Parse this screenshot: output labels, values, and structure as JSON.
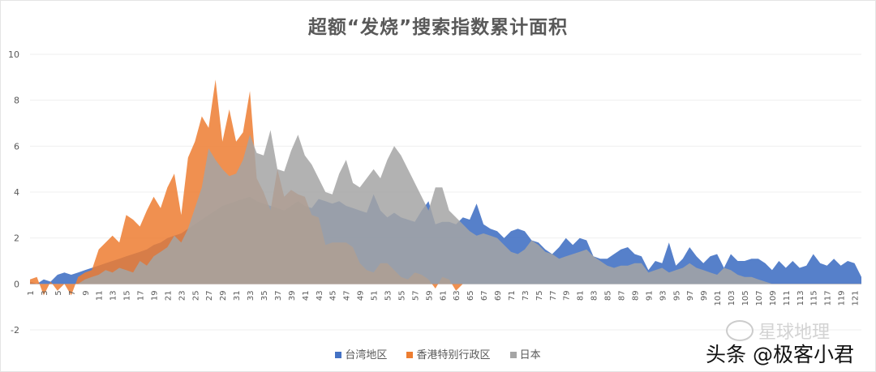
{
  "chart_data": {
    "type": "area",
    "title": "超额“发烧”搜索指数累计面积",
    "xlabel": "",
    "ylabel": "",
    "ylim": [
      -2,
      10
    ],
    "yticks": [
      -2,
      0,
      2,
      4,
      6,
      8,
      10
    ],
    "grid": true,
    "legend_position": "bottom",
    "x_start": 1,
    "x_end": 122,
    "x_label_step": 2,
    "series": [
      {
        "name": "台湾地区",
        "color": "#4472C4",
        "values": [
          0.1,
          0,
          0.2,
          0.1,
          0.4,
          0.5,
          0.4,
          0.5,
          0.6,
          0.7,
          0.8,
          0.9,
          1.0,
          1.1,
          1.2,
          1.3,
          1.4,
          1.5,
          1.7,
          1.8,
          2.0,
          2.1,
          2.2,
          2.4,
          2.6,
          2.8,
          3.0,
          3.2,
          3.4,
          3.5,
          3.6,
          3.7,
          3.8,
          3.6,
          3.5,
          3.4,
          3.3,
          3.2,
          3.4,
          3.6,
          3.4,
          3.3,
          3.7,
          3.6,
          3.5,
          3.6,
          3.4,
          3.3,
          3.2,
          3.1,
          3.9,
          3.2,
          2.9,
          3.1,
          2.9,
          2.8,
          2.7,
          3.2,
          3.6,
          2.6,
          2.7,
          2.7,
          2.6,
          2.9,
          2.8,
          3.5,
          2.6,
          2.4,
          2.3,
          2.0,
          2.3,
          2.4,
          2.3,
          1.9,
          1.8,
          1.5,
          1.3,
          1.6,
          2.0,
          1.7,
          2.0,
          1.9,
          1.2,
          1.1,
          1.1,
          1.3,
          1.5,
          1.6,
          1.3,
          1.2,
          0.6,
          1.0,
          0.9,
          1.8,
          0.8,
          1.1,
          1.6,
          1.2,
          0.9,
          1.2,
          1.3,
          0.7,
          1.3,
          1.0,
          1.0,
          1.1,
          1.1,
          0.9,
          0.6,
          1.0,
          0.7,
          1.0,
          0.7,
          0.8,
          1.3,
          0.9,
          0.8,
          1.1,
          0.8,
          1.0,
          0.9,
          0.3
        ]
      },
      {
        "name": "香港特别行政区",
        "color": "#ED7D31",
        "values": [
          0.2,
          0.3,
          -0.5,
          0.1,
          -0.3,
          0,
          -0.5,
          0.3,
          0.5,
          0.6,
          1.5,
          1.8,
          2.1,
          1.8,
          3.0,
          2.8,
          2.5,
          3.2,
          3.8,
          3.3,
          4.2,
          4.8,
          3.0,
          5.5,
          6.2,
          7.3,
          6.8,
          8.9,
          6.2,
          7.6,
          6.2,
          6.6,
          8.4,
          4.6,
          4.0,
          3.2,
          5.0,
          3.8,
          4.1,
          3.9,
          3.8,
          3.0,
          2.9,
          1.7,
          1.8,
          1.8,
          1.8,
          1.6,
          0.9,
          0.6,
          0.5,
          0.9,
          0.9,
          0.6,
          0.3,
          0.2,
          0.5,
          0.4,
          0.2,
          -0.2,
          0.3,
          0.2,
          -0.3,
          0,
          0,
          0,
          0,
          0,
          0,
          0,
          0,
          0,
          0,
          0,
          0,
          0,
          0,
          0,
          0,
          0,
          0,
          0,
          0,
          0,
          0,
          0,
          0,
          0,
          0,
          0,
          0,
          0,
          0,
          0,
          0,
          0,
          0,
          0,
          0,
          0,
          0,
          0,
          0,
          0,
          0,
          0,
          0,
          0,
          0,
          0,
          0,
          0,
          0,
          0,
          0,
          0,
          0,
          0,
          0,
          0,
          0,
          0
        ]
      },
      {
        "name": "日本",
        "color": "#A5A5A5",
        "values": [
          0,
          0,
          0,
          0,
          0,
          0,
          0,
          0,
          0.2,
          0.3,
          0.4,
          0.6,
          0.5,
          0.7,
          0.6,
          0.5,
          1.0,
          0.8,
          1.2,
          1.4,
          1.6,
          2.1,
          1.8,
          2.4,
          3.3,
          4.2,
          5.9,
          5.4,
          5.0,
          4.7,
          4.8,
          5.4,
          6.5,
          5.7,
          5.6,
          6.7,
          5.0,
          4.9,
          5.8,
          6.5,
          5.6,
          5.2,
          4.6,
          4.0,
          3.9,
          4.8,
          5.4,
          4.4,
          4.2,
          4.6,
          5.0,
          4.6,
          5.4,
          6.0,
          5.6,
          5.0,
          4.4,
          3.8,
          3.2,
          4.2,
          4.2,
          3.2,
          2.9,
          2.6,
          2.3,
          2.1,
          2.2,
          2.1,
          2.0,
          1.7,
          1.4,
          1.3,
          1.5,
          1.9,
          1.7,
          1.4,
          1.3,
          1.1,
          1.2,
          1.3,
          1.4,
          1.5,
          1.2,
          1.0,
          0.8,
          0.7,
          0.8,
          0.8,
          0.9,
          0.9,
          0.5,
          0.6,
          0.7,
          0.5,
          0.6,
          0.7,
          0.9,
          0.7,
          0.6,
          0.5,
          0.4,
          0.7,
          0.6,
          0.4,
          0.3,
          0.3,
          0.2,
          0.1,
          0,
          0,
          0,
          0,
          0,
          0,
          0,
          0,
          0,
          0,
          0,
          0,
          0,
          0
        ]
      }
    ]
  },
  "watermark": {
    "line1": "星球地理",
    "line2": "头条 @极客小君"
  }
}
